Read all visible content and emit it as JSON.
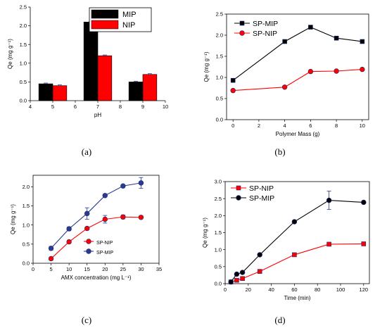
{
  "chart_data": [
    {
      "id": "a",
      "caption": "(a)",
      "type": "bar",
      "xlabel": "pH",
      "ylabel": "Qe (mg g⁻¹)",
      "xlim": [
        4,
        10
      ],
      "ylim": [
        0,
        2.5
      ],
      "xticks": [
        "4",
        "5",
        "6",
        "7",
        "8",
        "9",
        "10"
      ],
      "yticks": [
        "0.0",
        "0.5",
        "1.0",
        "1.5",
        "2.0",
        "2.5"
      ],
      "x": [
        5,
        7,
        9
      ],
      "series": [
        {
          "name": "MIP",
          "color": "#000000",
          "values": [
            0.45,
            2.1,
            0.5
          ],
          "errors": [
            0.02,
            0.02,
            0.02
          ]
        },
        {
          "name": "NIP",
          "color": "#ff0000",
          "values": [
            0.4,
            1.2,
            0.7
          ],
          "errors": [
            0.02,
            0.02,
            0.02
          ]
        }
      ],
      "legend": "top-right"
    },
    {
      "id": "b",
      "caption": "(b)",
      "type": "line",
      "xlabel": "Polymer Mass (g)",
      "ylabel": "Qe (mg g⁻¹)",
      "xlim": [
        -0.5,
        10.5
      ],
      "ylim": [
        0,
        2.5
      ],
      "xticks": [
        "0",
        "2",
        "4",
        "6",
        "8",
        "10"
      ],
      "yticks": [
        "0.0",
        "0.5",
        "1.0",
        "1.5",
        "2.0",
        "2.5"
      ],
      "series": [
        {
          "name": "SP-MIP",
          "color": "#000000",
          "marker": "square",
          "x": [
            0,
            4,
            6,
            8,
            10
          ],
          "values": [
            0.93,
            1.85,
            2.19,
            1.93,
            1.85
          ]
        },
        {
          "name": "SP-NIP",
          "color": "#ff0000",
          "marker": "circle",
          "x": [
            0,
            4,
            6,
            8,
            10
          ],
          "values": [
            0.69,
            0.77,
            1.14,
            1.15,
            1.19
          ]
        }
      ],
      "legend": "top-left"
    },
    {
      "id": "c",
      "caption": "(c)",
      "type": "line",
      "xlabel": "AMX concentration (mg L⁻¹)",
      "ylabel": "Qe (mg g⁻¹)",
      "xlim": [
        0,
        35
      ],
      "ylim": [
        0,
        2.3
      ],
      "xticks": [
        "0",
        "5",
        "10",
        "15",
        "20",
        "25",
        "30",
        "35"
      ],
      "yticks": [
        "0.0",
        "0.5",
        "1.0",
        "1.5",
        "2.0"
      ],
      "series": [
        {
          "name": "SP-NIP",
          "color": "#ff0000",
          "marker": "circle",
          "x": [
            5,
            10,
            15,
            20,
            25,
            30
          ],
          "values": [
            0.12,
            0.56,
            0.91,
            1.15,
            1.21,
            1.2
          ],
          "errors": [
            0.04,
            0.04,
            0.04,
            0.1,
            0.05,
            0.04
          ]
        },
        {
          "name": "SP-MIP",
          "color": "#2a3a8c",
          "marker": "circle",
          "x": [
            5,
            10,
            15,
            20,
            25,
            30
          ],
          "values": [
            0.39,
            0.9,
            1.3,
            1.77,
            2.02,
            2.1
          ],
          "errors": [
            0.05,
            0.05,
            0.15,
            0.04,
            0.03,
            0.14
          ]
        }
      ],
      "legend": "bottom-right"
    },
    {
      "id": "d",
      "caption": "(d)",
      "type": "line",
      "xlabel": "Time (min)",
      "ylabel": "Qe (mg g⁻¹)",
      "xlim": [
        0,
        125
      ],
      "ylim": [
        0,
        3.0
      ],
      "xticks": [
        "0",
        "20",
        "40",
        "60",
        "80",
        "100",
        "120"
      ],
      "yticks": [
        "0.0",
        "0.5",
        "1.0",
        "1.5",
        "2.0",
        "2.5",
        "3.0"
      ],
      "series": [
        {
          "name": "SP-NIP",
          "color": "#ff0000",
          "marker": "square",
          "x": [
            5,
            10,
            15,
            30,
            60,
            90,
            120
          ],
          "values": [
            0.05,
            0.1,
            0.15,
            0.36,
            0.85,
            1.16,
            1.17
          ]
        },
        {
          "name": "SP-MIP",
          "color": "#000000",
          "marker": "circle",
          "x": [
            5,
            10,
            15,
            30,
            60,
            90,
            120
          ],
          "values": [
            0.05,
            0.28,
            0.33,
            0.85,
            1.82,
            2.45,
            2.39
          ],
          "errors": [
            0,
            0,
            0,
            0,
            0,
            0.27,
            0
          ]
        }
      ],
      "legend": "top-left"
    }
  ]
}
